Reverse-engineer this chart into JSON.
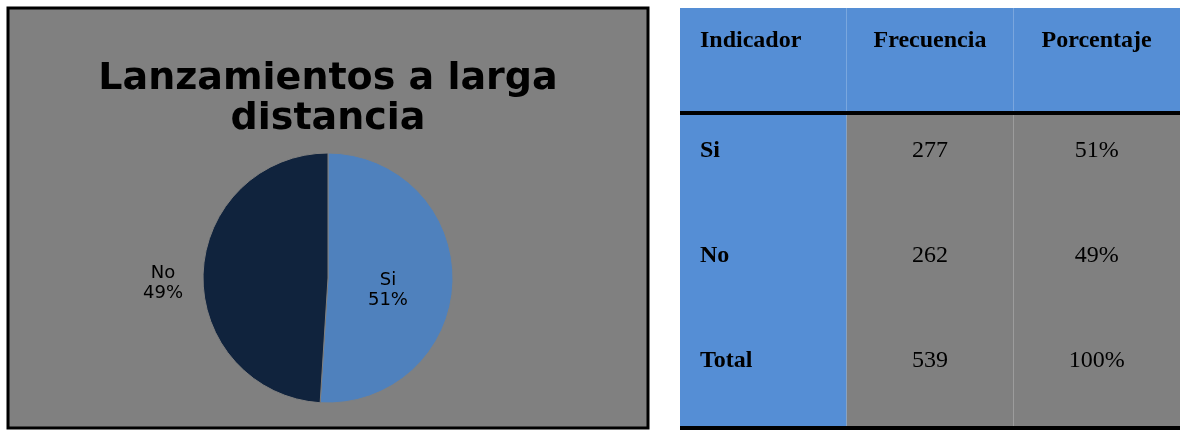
{
  "chart_data": [
    {
      "type": "pie",
      "title": "Lanzamientos a larga distancia",
      "categories": [
        "Si",
        "No"
      ],
      "values": [
        51,
        49
      ],
      "colors": [
        "#4f81bd",
        "#10233d"
      ],
      "value_labels": [
        "51%",
        "49%"
      ]
    },
    {
      "type": "other",
      "annotations": [
        "Indicador",
        "Frecuencia",
        "Porcentaje",
        "Si",
        "277",
        "51%",
        "No",
        "262",
        "49%",
        "Total",
        "539",
        "100%"
      ]
    }
  ]
}
